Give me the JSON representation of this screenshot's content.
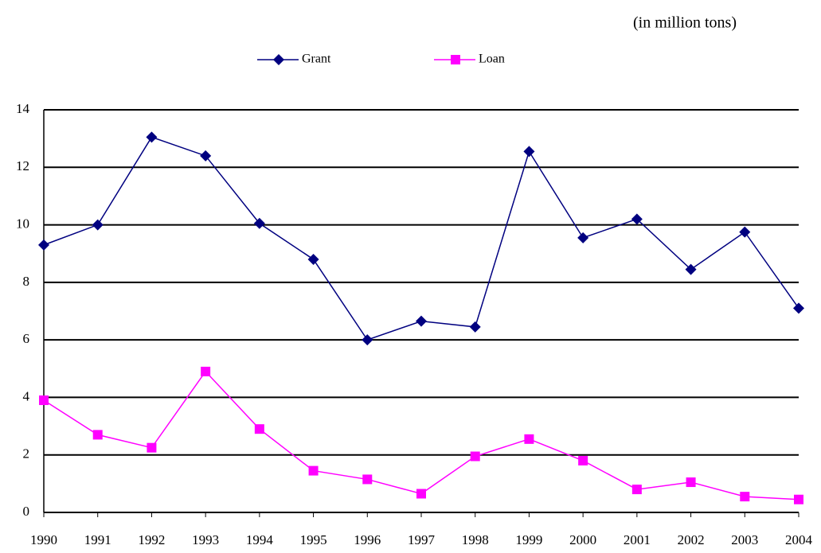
{
  "chart_data": {
    "type": "line",
    "subtitle": "(in million tons)",
    "categories": [
      "1990",
      "1991",
      "1992",
      "1993",
      "1994",
      "1995",
      "1996",
      "1997",
      "1998",
      "1999",
      "2000",
      "2001",
      "2002",
      "2003",
      "2004"
    ],
    "series": [
      {
        "name": "Grant",
        "color": "#000080",
        "marker": "diamond",
        "values": [
          9.3,
          10.0,
          13.05,
          12.4,
          10.05,
          8.8,
          6.0,
          6.65,
          6.45,
          12.55,
          9.55,
          10.2,
          8.45,
          9.75,
          7.1
        ]
      },
      {
        "name": "Loan",
        "color": "#ff00ff",
        "marker": "square",
        "values": [
          3.9,
          2.7,
          2.25,
          4.9,
          2.9,
          1.45,
          1.15,
          0.65,
          1.95,
          2.55,
          1.8,
          0.8,
          1.05,
          0.55,
          0.45
        ]
      }
    ],
    "ylim": [
      0,
      14
    ],
    "yticks": [
      0,
      2,
      4,
      6,
      8,
      10,
      12,
      14
    ],
    "grid": true
  }
}
